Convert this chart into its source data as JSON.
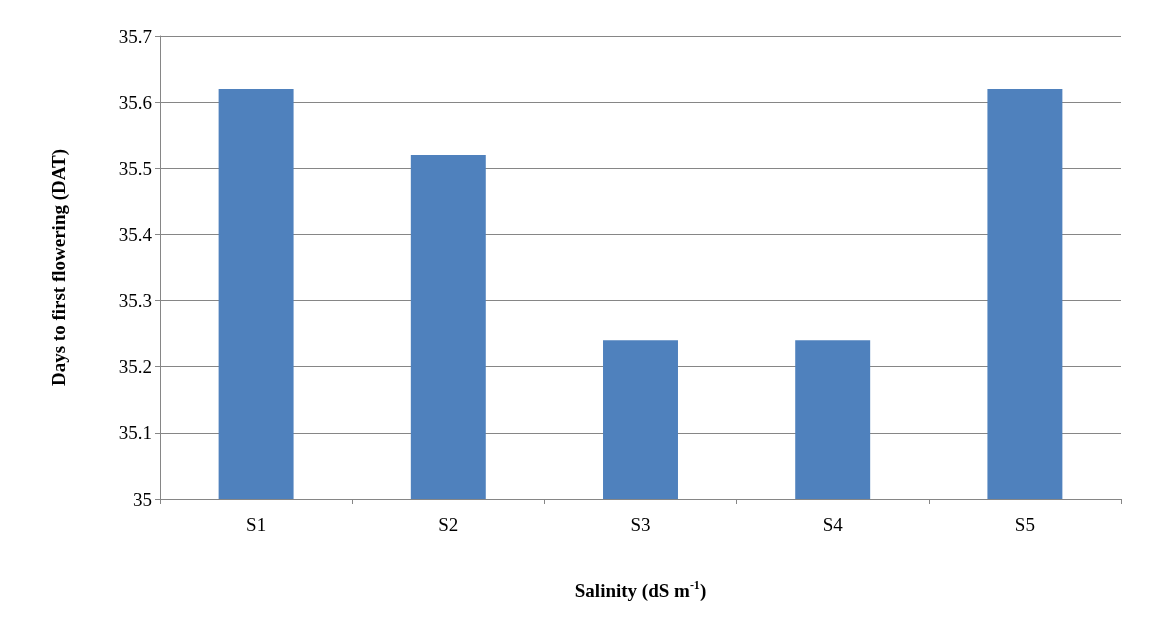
{
  "chart_data": {
    "type": "bar",
    "categories": [
      "S1",
      "S2",
      "S3",
      "S4",
      "S5"
    ],
    "values": [
      35.62,
      35.52,
      35.24,
      35.24,
      35.62
    ],
    "color": "#4f81bd",
    "xlabel": "Salinity (dS m$^{-1}$)",
    "ylabel": "Days to first flowering (DAT)",
    "ylim": [
      35,
      35.7
    ],
    "yticks": [
      35,
      35.1,
      35.2,
      35.3,
      35.4,
      35.5,
      35.6,
      35.7
    ],
    "grid": "y"
  }
}
